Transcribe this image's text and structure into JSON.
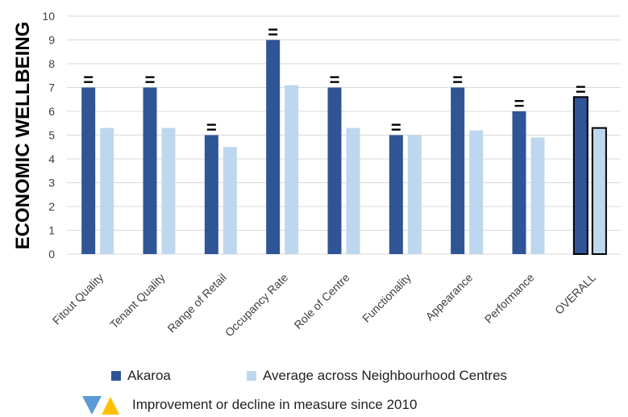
{
  "chart_data": {
    "type": "bar",
    "ylabel": "ECONOMIC WELLBEING",
    "xlabel": "",
    "title": "",
    "ylim": [
      0,
      10
    ],
    "yticks": [
      0,
      1,
      2,
      3,
      4,
      5,
      6,
      7,
      8,
      9,
      10
    ],
    "grid": true,
    "categories": [
      "Fitout Quality",
      "Tenant Quality",
      "Range of Retail",
      "Occupancy Rate",
      "Role of Centre",
      "Functionality",
      "Appearance",
      "Performance",
      "OVERALL"
    ],
    "series": [
      {
        "name": "Akaroa",
        "color": "#2f5597",
        "values": [
          7,
          7,
          5,
          9,
          7,
          5,
          7,
          6,
          6.6
        ]
      },
      {
        "name": "Average across Neighbourhood Centres",
        "color": "#bdd7ee",
        "values": [
          5.3,
          5.3,
          4.5,
          7.1,
          5.3,
          5.0,
          5.2,
          4.9,
          5.3
        ]
      }
    ],
    "change_markers": [
      "=",
      "=",
      "=",
      "=",
      "=",
      "=",
      "=",
      "=",
      "="
    ],
    "highlighted_category": "OVERALL",
    "legend_position": "bottom"
  },
  "legend_note": {
    "text": "Improvement or decline in measure since 2010",
    "down_color": "#5b9bd5",
    "up_color": "#ffc000"
  }
}
